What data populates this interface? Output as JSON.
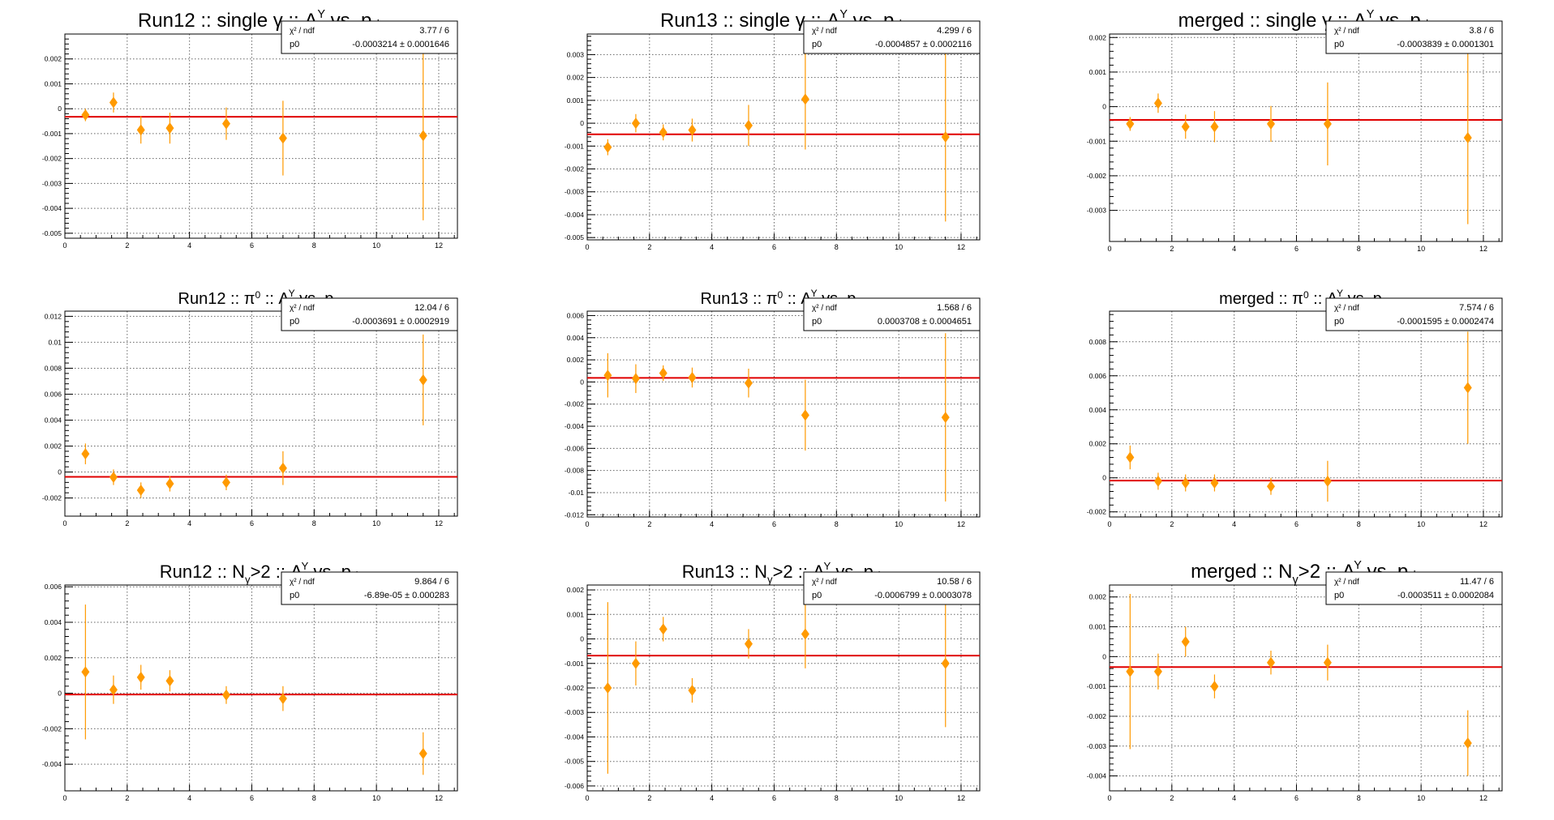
{
  "colors": {
    "marker": "#ff9a00",
    "fit_line": "#e00000",
    "axis": "#000000",
    "grid": "#666666",
    "statbox_border": "#000000"
  },
  "chart_data": [
    {
      "type": "scatter",
      "title_main": "Run12 :: single γ :: A",
      "title_sup": "Y",
      "title_mid": " vs. p",
      "title_tail": "⊥",
      "fontsize": 24,
      "stat_chi_label": "χ² / ndf",
      "stat_chi_value": "3.77 / 6",
      "stat_p0_label": "p0",
      "stat_p0_value": "-0.0003214 ± 0.0001646",
      "fit_value": -0.0003214,
      "xlim": [
        0,
        12.6
      ],
      "ylim": [
        -0.0052,
        0.003
      ],
      "xticks": [
        0,
        2,
        4,
        6,
        8,
        10,
        12
      ],
      "xtick_labels": [
        "0",
        "2",
        "4",
        "6",
        "8",
        "10",
        "12"
      ],
      "yticks": [
        -0.005,
        -0.004,
        -0.003,
        -0.002,
        -0.001,
        0,
        0.001,
        0.002
      ],
      "ytick_labels": [
        "-0.005",
        "-0.004",
        "-0.003",
        "-0.002",
        "-0.001",
        "0",
        "0.001",
        "0.002"
      ],
      "points": [
        {
          "x": 0.66,
          "y": -0.00025,
          "err": 0.00025
        },
        {
          "x": 1.56,
          "y": 0.00025,
          "err": 0.0004
        },
        {
          "x": 2.44,
          "y": -0.00085,
          "err": 0.00055
        },
        {
          "x": 3.37,
          "y": -0.00078,
          "err": 0.00062
        },
        {
          "x": 5.18,
          "y": -0.0006,
          "err": 0.00065
        },
        {
          "x": 7.0,
          "y": -0.00118,
          "err": 0.0015
        },
        {
          "x": 11.5,
          "y": -0.00108,
          "err": 0.0034
        }
      ]
    },
    {
      "type": "scatter",
      "title_main": "Run13 :: single γ :: A",
      "title_sup": "Y",
      "title_mid": " vs. p",
      "title_tail": "⊥",
      "fontsize": 24,
      "stat_chi_label": "χ² / ndf",
      "stat_chi_value": "4.299 / 6",
      "stat_p0_label": "p0",
      "stat_p0_value": "-0.0004857 ± 0.0002116",
      "fit_value": -0.0004857,
      "xlim": [
        0,
        12.6
      ],
      "ylim": [
        -0.0051,
        0.0039
      ],
      "xticks": [
        0,
        2,
        4,
        6,
        8,
        10,
        12
      ],
      "xtick_labels": [
        "0",
        "2",
        "4",
        "6",
        "8",
        "10",
        "12"
      ],
      "yticks": [
        -0.005,
        -0.004,
        -0.003,
        -0.002,
        -0.001,
        0,
        0.001,
        0.002,
        0.003
      ],
      "ytick_labels": [
        "-0.005",
        "-0.004",
        "-0.003",
        "-0.002",
        "-0.001",
        "0",
        "0.001",
        "0.002",
        "0.003"
      ],
      "points": [
        {
          "x": 0.66,
          "y": -0.00105,
          "err": 0.00035
        },
        {
          "x": 1.56,
          "y": 0.0,
          "err": 0.0004
        },
        {
          "x": 2.44,
          "y": -0.0004,
          "err": 0.00035
        },
        {
          "x": 3.37,
          "y": -0.0003,
          "err": 0.0005
        },
        {
          "x": 5.18,
          "y": -0.0001,
          "err": 0.0009
        },
        {
          "x": 7.0,
          "y": 0.00105,
          "err": 0.0022
        },
        {
          "x": 11.5,
          "y": -0.0006,
          "err": 0.0037
        }
      ]
    },
    {
      "type": "scatter",
      "title_main": "merged :: single γ :: A",
      "title_sup": "Y",
      "title_mid": " vs. p",
      "title_tail": "⊥",
      "fontsize": 24,
      "stat_chi_label": "χ² / ndf",
      "stat_chi_value": "3.8 / 6",
      "stat_p0_label": "p0",
      "stat_p0_value": "-0.0003839 ± 0.0001301",
      "fit_value": -0.0003839,
      "xlim": [
        0,
        12.6
      ],
      "ylim": [
        -0.0039,
        0.0021
      ],
      "xticks": [
        0,
        2,
        4,
        6,
        8,
        10,
        12
      ],
      "xtick_labels": [
        "0",
        "2",
        "4",
        "6",
        "8",
        "10",
        "12"
      ],
      "yticks": [
        -0.003,
        -0.002,
        -0.001,
        0,
        0.001,
        0.002
      ],
      "ytick_labels": [
        "-0.003",
        "-0.002",
        "-0.001",
        "0",
        "0.001",
        "0.002"
      ],
      "points": [
        {
          "x": 0.66,
          "y": -0.0005,
          "err": 0.0002
        },
        {
          "x": 1.56,
          "y": 0.0001,
          "err": 0.00028
        },
        {
          "x": 2.44,
          "y": -0.00058,
          "err": 0.00035
        },
        {
          "x": 3.37,
          "y": -0.00058,
          "err": 0.00045
        },
        {
          "x": 5.18,
          "y": -0.0005,
          "err": 0.00052
        },
        {
          "x": 7.0,
          "y": -0.0005,
          "err": 0.0012
        },
        {
          "x": 11.5,
          "y": -0.0009,
          "err": 0.0025
        }
      ]
    },
    {
      "type": "scatter",
      "title_main": "Run12 :: π",
      "title_sup0": "0",
      "title_rest": " :: A",
      "title_sub": "L",
      "title_sup": "Y",
      "title_mid": " vs. p",
      "title_tail": "⊥",
      "fontsize": 20,
      "stat_chi_label": "χ² / ndf",
      "stat_chi_value": "12.04 / 6",
      "stat_p0_label": "p0",
      "stat_p0_value": "-0.0003691 ± 0.0002919",
      "fit_value": -0.0003691,
      "xlim": [
        0,
        12.6
      ],
      "ylim": [
        -0.0034,
        0.0124
      ],
      "xticks": [
        0,
        2,
        4,
        6,
        8,
        10,
        12
      ],
      "xtick_labels": [
        "0",
        "2",
        "4",
        "6",
        "8",
        "10",
        "12"
      ],
      "yticks": [
        -0.002,
        0,
        0.002,
        0.004,
        0.006,
        0.008,
        0.01,
        0.012
      ],
      "ytick_labels": [
        "-0.002",
        "0",
        "0.002",
        "0.004",
        "0.006",
        "0.008",
        "0.01",
        "0.012"
      ],
      "points": [
        {
          "x": 0.66,
          "y": 0.0014,
          "err": 0.0008
        },
        {
          "x": 1.56,
          "y": -0.0004,
          "err": 0.0006
        },
        {
          "x": 2.44,
          "y": -0.0014,
          "err": 0.0006
        },
        {
          "x": 3.37,
          "y": -0.0009,
          "err": 0.0006
        },
        {
          "x": 5.18,
          "y": -0.0008,
          "err": 0.0006
        },
        {
          "x": 7.0,
          "y": 0.0003,
          "err": 0.0013
        },
        {
          "x": 11.5,
          "y": 0.0071,
          "err": 0.0035
        }
      ]
    },
    {
      "type": "scatter",
      "title_main": "Run13 :: π",
      "title_sup0": "0",
      "title_rest": " :: A",
      "title_sub": "L",
      "title_sup": "Y",
      "title_mid": " vs. p",
      "title_tail": "⊥",
      "fontsize": 20,
      "stat_chi_label": "χ² / ndf",
      "stat_chi_value": "1.568 / 6",
      "stat_p0_label": "p0",
      "stat_p0_value": "0.0003708 ± 0.0004651",
      "fit_value": 0.0003708,
      "xlim": [
        0,
        12.6
      ],
      "ylim": [
        -0.0122,
        0.0064
      ],
      "xticks": [
        0,
        2,
        4,
        6,
        8,
        10,
        12
      ],
      "xtick_labels": [
        "0",
        "2",
        "4",
        "6",
        "8",
        "10",
        "12"
      ],
      "yticks": [
        -0.012,
        -0.01,
        -0.008,
        -0.006,
        -0.004,
        -0.002,
        0,
        0.002,
        0.004,
        0.006
      ],
      "ytick_labels": [
        "-0.012",
        "-0.01",
        "-0.008",
        "-0.006",
        "-0.004",
        "-0.002",
        "0",
        "0.002",
        "0.004",
        "0.006"
      ],
      "points": [
        {
          "x": 0.66,
          "y": 0.0006,
          "err": 0.002
        },
        {
          "x": 1.56,
          "y": 0.0003,
          "err": 0.0013
        },
        {
          "x": 2.44,
          "y": 0.0008,
          "err": 0.0007
        },
        {
          "x": 3.37,
          "y": 0.0004,
          "err": 0.0009
        },
        {
          "x": 5.18,
          "y": -0.0001,
          "err": 0.0013
        },
        {
          "x": 7.0,
          "y": -0.003,
          "err": 0.0032
        },
        {
          "x": 11.5,
          "y": -0.0032,
          "err": 0.0076
        }
      ]
    },
    {
      "type": "scatter",
      "title_main": "merged :: π",
      "title_sup0": "0",
      "title_rest": " :: A",
      "title_sub": "L",
      "title_sup": "Y",
      "title_mid": " vs. p",
      "title_tail": "⊥",
      "fontsize": 20,
      "stat_chi_label": "χ² / ndf",
      "stat_chi_value": "7.574 / 6",
      "stat_p0_label": "p0",
      "stat_p0_value": "-0.0001595 ± 0.0002474",
      "fit_value": -0.0001595,
      "xlim": [
        0,
        12.6
      ],
      "ylim": [
        -0.0023,
        0.0098
      ],
      "xticks": [
        0,
        2,
        4,
        6,
        8,
        10,
        12
      ],
      "xtick_labels": [
        "0",
        "2",
        "4",
        "6",
        "8",
        "10",
        "12"
      ],
      "yticks": [
        -0.002,
        0,
        0.002,
        0.004,
        0.006,
        0.008
      ],
      "ytick_labels": [
        "-0.002",
        "0",
        "0.002",
        "0.004",
        "0.006",
        "0.008"
      ],
      "points": [
        {
          "x": 0.66,
          "y": 0.0012,
          "err": 0.0007
        },
        {
          "x": 1.56,
          "y": -0.0002,
          "err": 0.0005
        },
        {
          "x": 2.44,
          "y": -0.0003,
          "err": 0.0005
        },
        {
          "x": 3.37,
          "y": -0.0003,
          "err": 0.0005
        },
        {
          "x": 5.18,
          "y": -0.0005,
          "err": 0.0005
        },
        {
          "x": 7.0,
          "y": -0.0002,
          "err": 0.0012
        },
        {
          "x": 11.5,
          "y": 0.0053,
          "err": 0.0033
        }
      ]
    },
    {
      "type": "scatter",
      "title_main": "Run12 :: N",
      "title_sub0": "γ",
      "title_rest": ">2 :: A",
      "title_sub": "L",
      "title_sup": "Y",
      "title_mid": " vs. p",
      "title_tail": "⊥",
      "fontsize": 22,
      "stat_chi_label": "χ² / ndf",
      "stat_chi_value": "9.864 / 6",
      "stat_p0_label": "p0",
      "stat_p0_value": "-6.89e-05 ± 0.000283",
      "fit_value": -6.89e-05,
      "xlim": [
        0,
        12.6
      ],
      "ylim": [
        -0.0055,
        0.0061
      ],
      "xticks": [
        0,
        2,
        4,
        6,
        8,
        10,
        12
      ],
      "xtick_labels": [
        "0",
        "2",
        "4",
        "6",
        "8",
        "10",
        "12"
      ],
      "yticks": [
        -0.004,
        -0.002,
        0,
        0.002,
        0.004,
        0.006
      ],
      "ytick_labels": [
        "-0.004",
        "-0.002",
        "0",
        "0.002",
        "0.004",
        "0.006"
      ],
      "points": [
        {
          "x": 0.66,
          "y": 0.0012,
          "err": 0.0038
        },
        {
          "x": 1.56,
          "y": 0.0002,
          "err": 0.0008
        },
        {
          "x": 2.44,
          "y": 0.0009,
          "err": 0.0007
        },
        {
          "x": 3.37,
          "y": 0.0007,
          "err": 0.0006
        },
        {
          "x": 5.18,
          "y": -0.0001,
          "err": 0.0005
        },
        {
          "x": 7.0,
          "y": -0.0003,
          "err": 0.0007
        },
        {
          "x": 11.5,
          "y": -0.0034,
          "err": 0.0012
        }
      ]
    },
    {
      "type": "scatter",
      "title_main": "Run13 :: N",
      "title_sub0": "γ",
      "title_rest": ">2 :: A",
      "title_sub": "L",
      "title_sup": "Y",
      "title_mid": " vs. p",
      "title_tail": "⊥",
      "fontsize": 22,
      "stat_chi_label": "χ² / ndf",
      "stat_chi_value": "10.58 / 6",
      "stat_p0_label": "p0",
      "stat_p0_value": "-0.0006799 ± 0.0003078",
      "fit_value": -0.0006799,
      "xlim": [
        0,
        12.6
      ],
      "ylim": [
        -0.0062,
        0.0022
      ],
      "xticks": [
        0,
        2,
        4,
        6,
        8,
        10,
        12
      ],
      "xtick_labels": [
        "0",
        "2",
        "4",
        "6",
        "8",
        "10",
        "12"
      ],
      "yticks": [
        -0.006,
        -0.005,
        -0.004,
        -0.003,
        -0.002,
        -0.001,
        0,
        0.001,
        0.002
      ],
      "ytick_labels": [
        "-0.006",
        "-0.005",
        "-0.004",
        "-0.003",
        "-0.002",
        "-0.001",
        "0",
        "0.001",
        "0.002"
      ],
      "points": [
        {
          "x": 0.66,
          "y": -0.002,
          "err": 0.0035
        },
        {
          "x": 1.56,
          "y": -0.001,
          "err": 0.0009
        },
        {
          "x": 2.44,
          "y": 0.0004,
          "err": 0.0005
        },
        {
          "x": 3.37,
          "y": -0.0021,
          "err": 0.0005
        },
        {
          "x": 5.18,
          "y": -0.0002,
          "err": 0.0006
        },
        {
          "x": 7.0,
          "y": 0.0002,
          "err": 0.0014
        },
        {
          "x": 11.5,
          "y": -0.001,
          "err": 0.0026
        }
      ]
    },
    {
      "type": "scatter",
      "title_main": "merged :: N",
      "title_sub0": "γ",
      "title_rest": ">2 :: A",
      "title_sub": "L",
      "title_sup": "Y",
      "title_mid": " vs. p",
      "title_tail": "⊥",
      "fontsize": 24,
      "stat_chi_label": "χ² / ndf",
      "stat_chi_value": "11.47 / 6",
      "stat_p0_label": "p0",
      "stat_p0_value": "-0.0003511 ± 0.0002084",
      "fit_value": -0.0003511,
      "xlim": [
        0,
        12.6
      ],
      "ylim": [
        -0.0045,
        0.0024
      ],
      "xticks": [
        0,
        2,
        4,
        6,
        8,
        10,
        12
      ],
      "xtick_labels": [
        "0",
        "2",
        "4",
        "6",
        "8",
        "10",
        "12"
      ],
      "yticks": [
        -0.004,
        -0.003,
        -0.002,
        -0.001,
        0,
        0.001,
        0.002
      ],
      "ytick_labels": [
        "-0.004",
        "-0.003",
        "-0.002",
        "-0.001",
        "0",
        "0.001",
        "0.002"
      ],
      "points": [
        {
          "x": 0.66,
          "y": -0.0005,
          "err": 0.0026
        },
        {
          "x": 1.56,
          "y": -0.0005,
          "err": 0.0006
        },
        {
          "x": 2.44,
          "y": 0.0005,
          "err": 0.0005
        },
        {
          "x": 3.37,
          "y": -0.001,
          "err": 0.0004
        },
        {
          "x": 5.18,
          "y": -0.0002,
          "err": 0.0004
        },
        {
          "x": 7.0,
          "y": -0.0002,
          "err": 0.0006
        },
        {
          "x": 11.5,
          "y": -0.0029,
          "err": 0.0011
        }
      ]
    }
  ]
}
